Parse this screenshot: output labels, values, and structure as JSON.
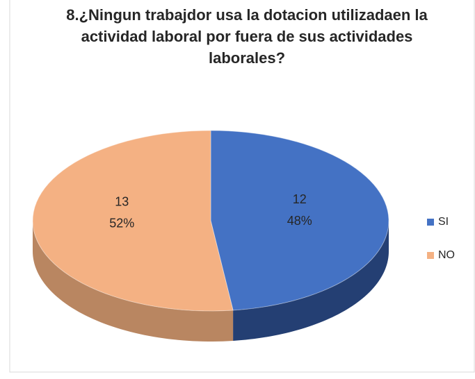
{
  "chart_data": {
    "type": "pie3d",
    "title": "8.¿Ningun trabajdor usa la dotacion utilizadaen la actividad laboral por fuera de sus actividades laborales?",
    "categories": [
      "SI",
      "NO"
    ],
    "values": [
      12,
      13
    ],
    "percent_labels": [
      "48%",
      "52%"
    ],
    "colors": [
      "#4472c4",
      "#f4b183"
    ],
    "side_colors": [
      "#243f73",
      "#b98661"
    ],
    "legend": "right"
  }
}
